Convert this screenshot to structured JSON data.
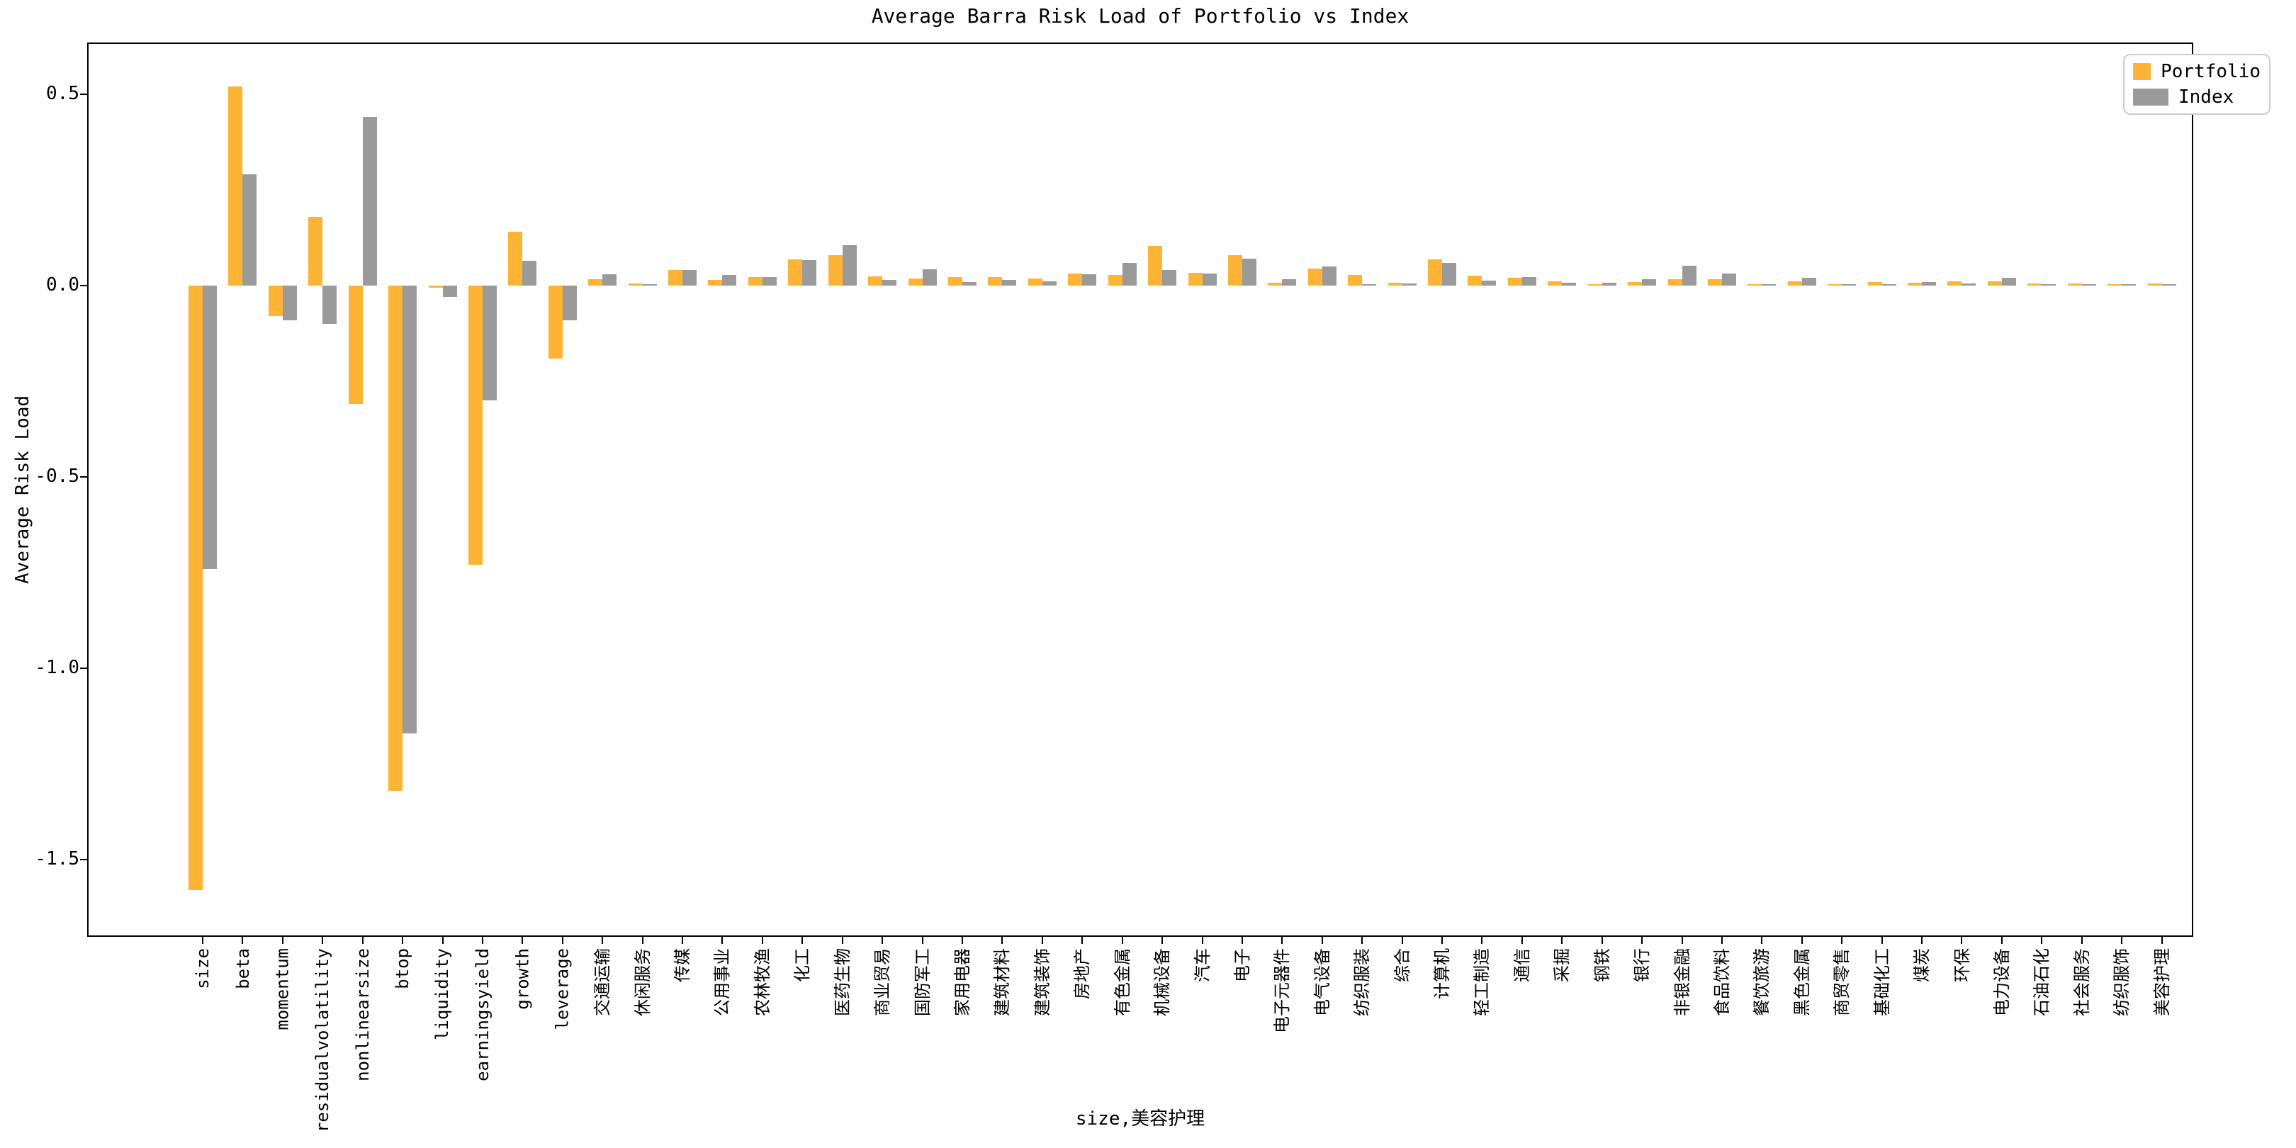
{
  "chart_data": {
    "type": "bar",
    "title": "Average Barra Risk Load of Portfolio vs Index",
    "xlabel": "size,美容护理",
    "ylabel": "Average Risk Load",
    "ylim": [
      -1.7,
      0.63
    ],
    "yticks": [
      0.5,
      0.0,
      -0.5,
      -1.0,
      -1.5
    ],
    "grid": false,
    "legend_position": "upper right",
    "categories": [
      "size",
      "beta",
      "momentum",
      "residualvolatility",
      "nonlinearsize",
      "btop",
      "liquidity",
      "earningsyield",
      "growth",
      "leverage",
      "交通运输",
      "休闲服务",
      "传媒",
      "公用事业",
      "农林牧渔",
      "化工",
      "医药生物",
      "商业贸易",
      "国防军工",
      "家用电器",
      "建筑材料",
      "建筑装饰",
      "房地产",
      "有色金属",
      "机械设备",
      "汽车",
      "电子",
      "电子元器件",
      "电气设备",
      "纺织服装",
      "综合",
      "计算机",
      "轻工制造",
      "通信",
      "采掘",
      "钢铁",
      "银行",
      "非银金融",
      "食品饮料",
      "餐饮旅游",
      "黑色金属",
      "商贸零售",
      "基础化工",
      "煤炭",
      "环保",
      "电力设备",
      "石油石化",
      "社会服务",
      "纺织服饰",
      "美容护理"
    ],
    "series": [
      {
        "name": "Portfolio",
        "color": "#FDB435",
        "values": [
          -1.58,
          0.52,
          -0.08,
          0.18,
          -0.31,
          -1.32,
          -0.005,
          -0.73,
          0.14,
          -0.19,
          0.017,
          0.005,
          0.04,
          0.015,
          0.023,
          0.068,
          0.079,
          0.024,
          0.019,
          0.023,
          0.022,
          0.019,
          0.032,
          0.028,
          0.103,
          0.034,
          0.079,
          0.007,
          0.044,
          0.028,
          0.008,
          0.069,
          0.026,
          0.02,
          0.011,
          0.003,
          0.009,
          0.017,
          0.017,
          0.001,
          0.011,
          0.004,
          0.009,
          0.007,
          0.011,
          0.011,
          0.006,
          0.005,
          0.003,
          0.005
        ]
      },
      {
        "name": "Index",
        "color": "#9A9A9A",
        "values": [
          -0.74,
          0.29,
          -0.09,
          -0.1,
          0.44,
          -1.17,
          -0.03,
          -0.3,
          0.065,
          -0.09,
          0.029,
          0.001,
          0.04,
          0.028,
          0.023,
          0.066,
          0.105,
          0.015,
          0.042,
          0.009,
          0.015,
          0.012,
          0.029,
          0.059,
          0.04,
          0.032,
          0.071,
          0.016,
          0.05,
          0.001,
          0.005,
          0.06,
          0.013,
          0.022,
          0.007,
          0.008,
          0.017,
          0.051,
          0.031,
          0.003,
          0.021,
          0.001,
          0.002,
          0.01,
          0.005,
          0.021,
          0.004,
          0.001,
          0.002,
          0.001
        ]
      }
    ]
  }
}
